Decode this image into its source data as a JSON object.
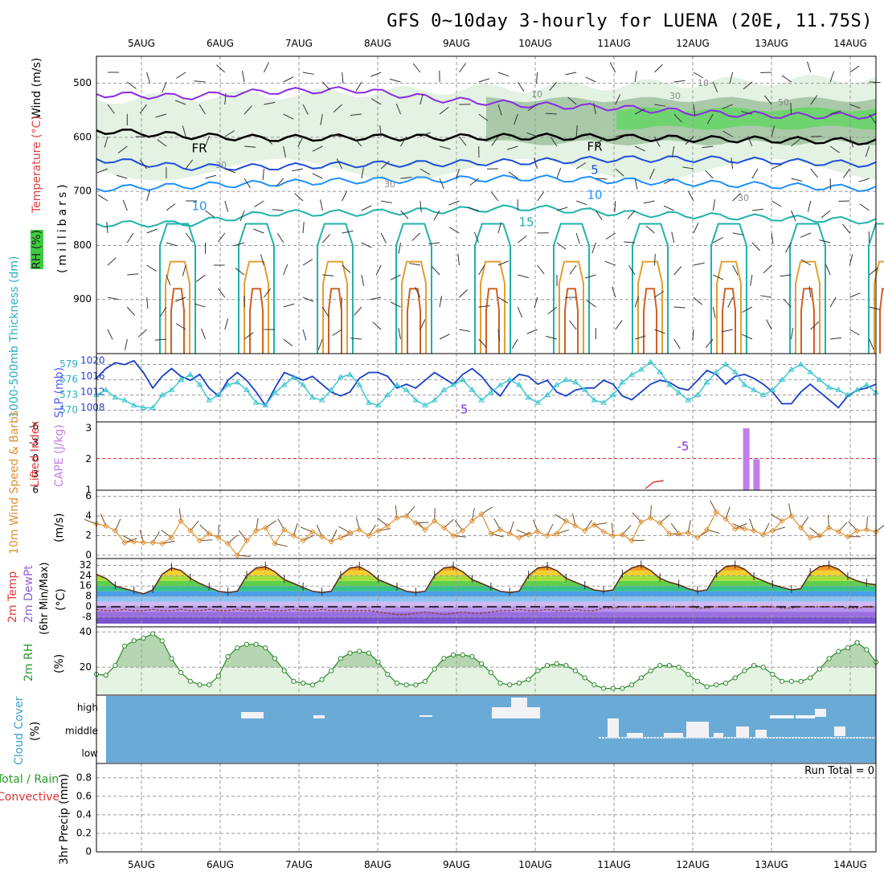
{
  "title": "GFS 0~10day 3-hourly for LUENA (20E, 11.75S)",
  "dates": [
    "5AUG",
    "6AUG",
    "7AUG",
    "8AUG",
    "9AUG",
    "10AUG",
    "11AUG",
    "12AUG",
    "13AUG",
    "14AUG"
  ],
  "labels": {
    "wind": "Wind (m/s)",
    "temperature": "Temperature (°C)",
    "rh_pct": "RH (%)",
    "millibars": "(millibars)",
    "thickness": "1000-500mb Thickness (dm)",
    "slp": "SLP (mb)",
    "lifted": "Lifted Index",
    "cape": "CAPE (J/kg)",
    "wind10": "10m Wind Speed & Barbs",
    "ms": "(m/s)",
    "temp2m": "2m Temp",
    "dewpt": "2m DewPt",
    "minmax": "(6hr Min/Max)",
    "degc": "(°C)",
    "rh2m": "2m RH",
    "pct": "(%)",
    "cloud": "Cloud Cover",
    "total_rain": "Total / Rain",
    "convective": "Convective",
    "precip": "3hr Precip (mm)",
    "run_total": "Run Total = 0"
  },
  "chart_data": [
    {
      "type": "line",
      "panel": "upper-air cross-section",
      "ylabel": "(millibars)",
      "y_ticks": [
        500,
        600,
        700,
        800,
        900
      ],
      "ylim": [
        1000,
        450
      ],
      "contour_labels": [
        "-5",
        "-5",
        "5",
        "10",
        "10",
        "15",
        "FR",
        "FR",
        "10",
        "30",
        "30",
        "50",
        "30",
        "10",
        "30"
      ],
      "series": [
        {
          "name": "FR",
          "values": [
            587,
            597,
            602,
            600,
            600,
            599,
            600,
            603,
            605,
            608
          ]
        },
        {
          "name": "-5",
          "values": [
            520,
            525,
            515,
            512,
            530,
            540,
            545,
            555,
            560,
            560
          ]
        },
        {
          "name": "5",
          "values": [
            640,
            655,
            655,
            650,
            648,
            645,
            640,
            640,
            645,
            650
          ]
        },
        {
          "name": "10",
          "values": [
            695,
            690,
            685,
            680,
            678,
            675,
            680,
            685,
            690,
            695
          ]
        },
        {
          "name": "15",
          "values": [
            760,
            760,
            740,
            740,
            735,
            730,
            740,
            745,
            750,
            755
          ]
        }
      ]
    },
    {
      "type": "line",
      "panel": "thickness & SLP",
      "left_ticks": [
        570,
        573,
        576,
        579
      ],
      "right_ticks": [
        1008,
        1012,
        1016,
        1020
      ],
      "series": [
        {
          "name": "SLP (mb)",
          "values": [
            1015.5,
            1018,
            1019.5,
            1019,
            1020,
            1017,
            1013,
            1016,
            1018,
            1016,
            1015,
            1016.5,
            1013,
            1011,
            1015,
            1017,
            1015,
            1012,
            1008.5,
            1013,
            1017,
            1016,
            1015,
            1016,
            1014,
            1012,
            1011,
            1012,
            1015.5,
            1017,
            1017,
            1016,
            1013,
            1014,
            1013,
            1015,
            1017,
            1015.5,
            1014,
            1016.5,
            1018,
            1016,
            1013,
            1011,
            1014.5,
            1016.5,
            1016,
            1014,
            1015,
            1012,
            1011,
            1012.5,
            1013,
            1013,
            1015,
            1014,
            1011,
            1010,
            1012,
            1014,
            1015,
            1014.5,
            1013,
            1012.5,
            1015,
            1017.5,
            1016.5,
            1014,
            1016,
            1016.5,
            1015.5,
            1014,
            1012,
            1009,
            1009,
            1012,
            1014,
            1012,
            1010,
            1008,
            1011,
            1012.5,
            1013,
            1014
          ]
        },
        {
          "name": "1000-500mb Thickness (dm)",
          "values": [
            573,
            574,
            572.5,
            572,
            571,
            570.5,
            570.5,
            573,
            574,
            576,
            577,
            575,
            572,
            573,
            575,
            575.5,
            574,
            571.5,
            571,
            573.5,
            575,
            576.5,
            575,
            572.5,
            572,
            574,
            576.5,
            577,
            575,
            571.5,
            571,
            573,
            575,
            574,
            572,
            571,
            572,
            574,
            575,
            576,
            574,
            572,
            573.5,
            575,
            576,
            575,
            572.5,
            571.5,
            573,
            575,
            576,
            575.5,
            574,
            572,
            571.5,
            573,
            575.5,
            577,
            578,
            579.5,
            577.5,
            575,
            573.5,
            572,
            573,
            575.5,
            577.5,
            579,
            577.5,
            575,
            574,
            573,
            574,
            576,
            578,
            579,
            577.5,
            576,
            574.5,
            574,
            573,
            574,
            575,
            573.5
          ]
        }
      ]
    },
    {
      "type": "bar",
      "panel": "lifted index & CAPE",
      "left_ticks": [
        "-6",
        "-3",
        "0",
        "3",
        "6"
      ],
      "right_ticks": [
        1,
        2,
        3
      ],
      "cape_bars": [
        {
          "time_days": 7.68,
          "value": 3.0
        },
        {
          "time_days": 7.81,
          "value": 2.0
        }
      ]
    },
    {
      "type": "line",
      "panel": "10m wind",
      "yticks": [
        0,
        2,
        4,
        6
      ],
      "ylabel": "(m/s)",
      "series": [
        {
          "name": "10m Wind Speed",
          "values": [
            3.2,
            3,
            2.5,
            1.3,
            1.4,
            1.3,
            1.3,
            1.2,
            1.8,
            3.5,
            2.5,
            1.5,
            2.2,
            1.8,
            1.2,
            0,
            1.5,
            2.5,
            2.8,
            1.2,
            2.6,
            2,
            1.5,
            2.4,
            1.9,
            1.4,
            1.8,
            2.3,
            2.6,
            2,
            2.5,
            3,
            3.8,
            4,
            3.3,
            2.6,
            3.5,
            2.8,
            2,
            2.5,
            3.5,
            4.2,
            2.2,
            2.6,
            2.2,
            1.8,
            2.1,
            2.4,
            2,
            2.2,
            3.5,
            3,
            2.5,
            3.1,
            2.4,
            2,
            2.1,
            1.5,
            3.4,
            3.8,
            3.3,
            2.2,
            2.2,
            2.3,
            1.8,
            2.6,
            4.4,
            3.7,
            2.7,
            2.7,
            2.5,
            2.1,
            2.5,
            3.5,
            4,
            2.8,
            1.8,
            2,
            2.8,
            2.4,
            1.9,
            2.5,
            2.6,
            2.4
          ]
        }
      ]
    },
    {
      "type": "area",
      "panel": "2m temp & dewpoint",
      "yticks": [
        -8,
        0,
        8,
        16,
        24,
        32
      ],
      "ylabel": "(°C)",
      "series": [
        {
          "name": "2m Temp",
          "values": [
            25,
            22,
            16,
            14,
            12,
            10,
            13,
            25,
            30,
            28,
            22,
            18,
            15,
            12,
            11,
            12,
            24,
            30,
            31,
            27,
            21,
            18,
            15,
            12,
            11,
            12,
            24,
            30,
            31,
            27,
            21,
            18,
            15,
            12,
            11,
            12,
            24,
            30,
            31,
            27,
            21,
            18,
            15,
            12,
            11,
            12,
            24,
            30,
            31,
            28,
            22,
            19,
            16,
            13,
            12,
            13,
            25,
            30,
            32,
            28,
            22,
            19,
            17,
            14,
            12,
            13,
            25,
            31,
            32,
            29,
            23,
            20,
            17,
            15,
            13,
            14,
            26,
            31,
            32,
            29,
            23,
            20,
            18,
            17
          ]
        },
        {
          "name": "2m DewPt",
          "values": [
            -2,
            -3,
            -3,
            -2,
            -3,
            -3,
            -2,
            -3,
            -3,
            -2,
            -3,
            -3,
            -2,
            -3,
            -3,
            -2,
            -3,
            -3,
            -2,
            -3,
            -3,
            -2,
            -3,
            -3,
            -2,
            -3,
            -3,
            -3,
            -3,
            -3,
            -4,
            -5,
            -6,
            -6,
            -5,
            -4,
            -5,
            -6,
            -5,
            -4,
            -5,
            -5,
            -4,
            -3,
            -3,
            -2,
            -3,
            -3,
            -2,
            -3,
            -3,
            -2,
            -3,
            -3,
            -1,
            -1,
            0,
            0,
            0,
            0,
            0,
            0,
            0,
            0,
            -1,
            -1,
            0,
            0,
            0,
            0,
            0,
            0,
            0,
            -1,
            -1,
            0,
            0,
            0,
            0,
            0,
            -1,
            -1,
            0,
            0
          ]
        }
      ]
    },
    {
      "type": "area",
      "panel": "2m RH",
      "yticks": [
        20,
        40
      ],
      "ylabel": "(%)",
      "series": [
        {
          "name": "2m RH",
          "values": [
            16,
            15.5,
            21,
            32,
            35,
            36.5,
            39,
            35,
            25,
            17,
            12,
            10,
            10,
            15,
            26,
            31,
            33,
            33,
            31,
            25,
            18,
            12,
            11,
            10,
            13,
            18,
            25,
            28,
            29,
            28,
            23,
            16,
            11,
            10,
            10,
            12,
            19,
            25,
            27,
            27,
            26,
            22,
            17,
            11,
            10,
            11,
            13,
            18,
            21,
            22,
            21,
            18,
            14,
            10,
            8,
            8,
            8,
            10,
            14,
            18,
            21,
            21,
            20,
            16,
            12,
            9,
            10,
            11,
            14,
            18,
            21,
            20,
            16,
            12,
            12,
            12,
            14,
            19,
            25,
            29,
            31,
            34,
            30,
            23
          ]
        }
      ]
    },
    {
      "type": "bar",
      "panel": "cloud cover",
      "categories": [
        "high",
        "middle",
        "low"
      ]
    },
    {
      "type": "bar",
      "panel": "3hr precip",
      "yticks": [
        "0",
        "0.2",
        "0.4",
        "0.6",
        "0.8"
      ],
      "ylabel": "3hr Precip (mm)",
      "values": []
    }
  ]
}
